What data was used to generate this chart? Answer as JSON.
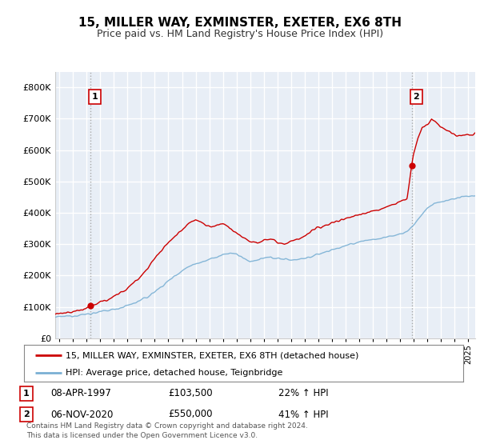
{
  "title": "15, MILLER WAY, EXMINSTER, EXETER, EX6 8TH",
  "subtitle": "Price paid vs. HM Land Registry's House Price Index (HPI)",
  "legend_line1": "15, MILLER WAY, EXMINSTER, EXETER, EX6 8TH (detached house)",
  "legend_line2": "HPI: Average price, detached house, Teignbridge",
  "annotation1_label": "1",
  "annotation1_date": "08-APR-1997",
  "annotation1_price": "£103,500",
  "annotation1_hpi": "22% ↑ HPI",
  "annotation2_label": "2",
  "annotation2_date": "06-NOV-2020",
  "annotation2_price": "£550,000",
  "annotation2_hpi": "41% ↑ HPI",
  "footer": "Contains HM Land Registry data © Crown copyright and database right 2024.\nThis data is licensed under the Open Government Licence v3.0.",
  "line_color_red": "#cc0000",
  "line_color_blue": "#7ab0d4",
  "dashed_color": "#aaaaaa",
  "bg_color": "#e8eef6",
  "grid_color": "#ffffff",
  "ylim": [
    0,
    850000
  ],
  "yticks": [
    0,
    100000,
    200000,
    300000,
    400000,
    500000,
    600000,
    700000,
    800000
  ],
  "xlim_start": 1994.7,
  "xlim_end": 2025.5,
  "point1_x": 1997.27,
  "point1_y": 103500,
  "point2_x": 2020.84,
  "point2_y": 550000,
  "sale1_x": 1997.27,
  "sale2_x": 2020.84,
  "hpi_anchors": [
    [
      1994.7,
      67000
    ],
    [
      1995.5,
      70000
    ],
    [
      1996.5,
      74000
    ],
    [
      1997.5,
      80000
    ],
    [
      1998.5,
      88000
    ],
    [
      1999.5,
      97000
    ],
    [
      2000.5,
      112000
    ],
    [
      2001.5,
      132000
    ],
    [
      2002.5,
      165000
    ],
    [
      2003.5,
      200000
    ],
    [
      2004.5,
      230000
    ],
    [
      2005.5,
      245000
    ],
    [
      2006.5,
      258000
    ],
    [
      2007.5,
      272000
    ],
    [
      2008.0,
      268000
    ],
    [
      2008.5,
      255000
    ],
    [
      2009.0,
      245000
    ],
    [
      2009.5,
      248000
    ],
    [
      2010.0,
      255000
    ],
    [
      2010.5,
      258000
    ],
    [
      2011.0,
      255000
    ],
    [
      2011.5,
      252000
    ],
    [
      2012.0,
      250000
    ],
    [
      2012.5,
      252000
    ],
    [
      2013.0,
      255000
    ],
    [
      2013.5,
      260000
    ],
    [
      2014.0,
      268000
    ],
    [
      2014.5,
      275000
    ],
    [
      2015.0,
      282000
    ],
    [
      2015.5,
      288000
    ],
    [
      2016.0,
      295000
    ],
    [
      2016.5,
      300000
    ],
    [
      2017.0,
      308000
    ],
    [
      2017.5,
      312000
    ],
    [
      2018.0,
      315000
    ],
    [
      2018.5,
      318000
    ],
    [
      2019.0,
      322000
    ],
    [
      2019.5,
      328000
    ],
    [
      2020.0,
      332000
    ],
    [
      2020.5,
      340000
    ],
    [
      2021.0,
      362000
    ],
    [
      2021.5,
      390000
    ],
    [
      2022.0,
      415000
    ],
    [
      2022.5,
      430000
    ],
    [
      2023.0,
      435000
    ],
    [
      2023.5,
      440000
    ],
    [
      2024.0,
      445000
    ],
    [
      2024.5,
      450000
    ],
    [
      2025.5,
      455000
    ]
  ],
  "red_anchors": [
    [
      1994.7,
      78000
    ],
    [
      1995.5,
      80000
    ],
    [
      1996.5,
      88000
    ],
    [
      1997.27,
      103500
    ],
    [
      1997.5,
      106000
    ],
    [
      1998.0,
      115000
    ],
    [
      1998.5,
      122000
    ],
    [
      1999.0,
      132000
    ],
    [
      1999.5,
      145000
    ],
    [
      2000.0,
      160000
    ],
    [
      2000.5,
      178000
    ],
    [
      2001.0,
      200000
    ],
    [
      2001.5,
      225000
    ],
    [
      2002.0,
      255000
    ],
    [
      2002.5,
      280000
    ],
    [
      2003.0,
      305000
    ],
    [
      2003.5,
      325000
    ],
    [
      2004.0,
      348000
    ],
    [
      2004.5,
      368000
    ],
    [
      2005.0,
      378000
    ],
    [
      2005.5,
      368000
    ],
    [
      2006.0,
      355000
    ],
    [
      2006.5,
      358000
    ],
    [
      2007.0,
      365000
    ],
    [
      2007.5,
      350000
    ],
    [
      2008.0,
      338000
    ],
    [
      2008.5,
      322000
    ],
    [
      2009.0,
      310000
    ],
    [
      2009.5,
      305000
    ],
    [
      2010.0,
      312000
    ],
    [
      2010.5,
      318000
    ],
    [
      2011.0,
      308000
    ],
    [
      2011.5,
      300000
    ],
    [
      2012.0,
      308000
    ],
    [
      2012.5,
      315000
    ],
    [
      2013.0,
      325000
    ],
    [
      2013.5,
      340000
    ],
    [
      2014.0,
      352000
    ],
    [
      2014.5,
      360000
    ],
    [
      2015.0,
      368000
    ],
    [
      2015.5,
      375000
    ],
    [
      2016.0,
      382000
    ],
    [
      2016.5,
      388000
    ],
    [
      2017.0,
      395000
    ],
    [
      2017.5,
      400000
    ],
    [
      2018.0,
      405000
    ],
    [
      2018.5,
      410000
    ],
    [
      2019.0,
      418000
    ],
    [
      2019.5,
      428000
    ],
    [
      2020.0,
      435000
    ],
    [
      2020.5,
      445000
    ],
    [
      2020.84,
      550000
    ],
    [
      2021.0,
      590000
    ],
    [
      2021.3,
      640000
    ],
    [
      2021.6,
      670000
    ],
    [
      2022.0,
      680000
    ],
    [
      2022.3,
      700000
    ],
    [
      2022.6,
      690000
    ],
    [
      2023.0,
      672000
    ],
    [
      2023.5,
      660000
    ],
    [
      2024.0,
      648000
    ],
    [
      2024.5,
      645000
    ],
    [
      2025.0,
      648000
    ],
    [
      2025.5,
      650000
    ]
  ]
}
